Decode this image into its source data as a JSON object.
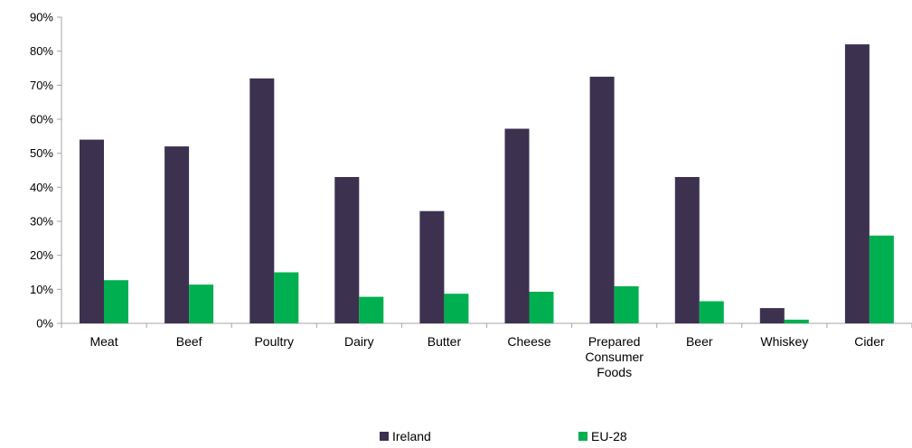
{
  "chart_data": {
    "type": "bar",
    "categories": [
      [
        "Meat"
      ],
      [
        "Beef"
      ],
      [
        "Poultry"
      ],
      [
        "Dairy"
      ],
      [
        "Butter"
      ],
      [
        "Cheese"
      ],
      [
        "Prepared",
        "Consumer",
        "Foods"
      ],
      [
        "Beer"
      ],
      [
        "Whiskey"
      ],
      [
        "Cider"
      ]
    ],
    "series": [
      {
        "name": "Ireland",
        "color": "#3d3150",
        "values": [
          54,
          52,
          72,
          43,
          33,
          57.2,
          72.5,
          43,
          4.5,
          82
        ]
      },
      {
        "name": "EU-28",
        "color": "#00b050",
        "values": [
          12.7,
          11.4,
          15,
          7.8,
          8.7,
          9.3,
          10.9,
          6.5,
          1.1,
          25.8
        ]
      }
    ],
    "y_ticks": [
      "0%",
      "10%",
      "20%",
      "30%",
      "40%",
      "50%",
      "60%",
      "70%",
      "80%",
      "90%"
    ],
    "ylim": [
      0,
      90
    ],
    "legend_position": "bottom",
    "grid": false
  }
}
